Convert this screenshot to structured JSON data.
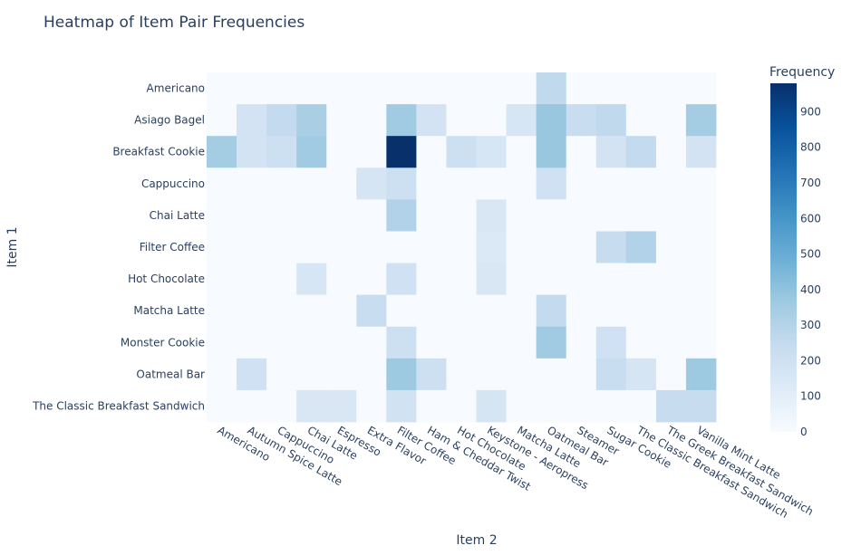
{
  "chart_data": {
    "type": "heatmap",
    "title": "Heatmap of Item Pair Frequencies",
    "xlabel": "Item 2",
    "ylabel": "Item 1",
    "colorbar_title": "Frequency",
    "colorscale": [
      "#f7fbff",
      "#deebf7",
      "#c6dbef",
      "#9ecae1",
      "#6baed6",
      "#4292c6",
      "#2171b5",
      "#08519c",
      "#08306b"
    ],
    "zlim": [
      0,
      980
    ],
    "colorbar_ticks": [
      0,
      100,
      200,
      300,
      400,
      500,
      600,
      700,
      800,
      900
    ],
    "x": [
      "Americano",
      "Autumn Spice Latte",
      "Cappuccino",
      "Chai Latte",
      "Espresso",
      "Extra Flavor",
      "Filter Coffee",
      "Ham & Cheddar Twist",
      "Hot Chocolate",
      "Keystone - Aeropress",
      "Matcha Latte",
      "Oatmeal Bar",
      "Steamer",
      "Sugar Cookie",
      "The Classic Breakfast Sandwich",
      "The Greek Breakfast Sandwich",
      "Vanilla Mint Latte"
    ],
    "y": [
      "Americano",
      "Asiago Bagel",
      "Breakfast Cookie",
      "Cappuccino",
      "Chai Latte",
      "Filter Coffee",
      "Hot Chocolate",
      "Matcha Latte",
      "Monster Cookie",
      "Oatmeal Bar",
      "The Classic Breakfast Sandwich"
    ],
    "z": [
      [
        0,
        0,
        0,
        0,
        0,
        0,
        0,
        0,
        0,
        0,
        0,
        260,
        0,
        0,
        0,
        0,
        0
      ],
      [
        0,
        180,
        250,
        330,
        0,
        0,
        360,
        180,
        0,
        0,
        160,
        380,
        230,
        260,
        0,
        0,
        350
      ],
      [
        350,
        180,
        210,
        360,
        0,
        0,
        980,
        0,
        210,
        160,
        0,
        380,
        0,
        180,
        250,
        0,
        180
      ],
      [
        0,
        0,
        0,
        0,
        0,
        170,
        210,
        0,
        0,
        0,
        0,
        200,
        0,
        0,
        0,
        0,
        0
      ],
      [
        0,
        0,
        0,
        0,
        0,
        0,
        310,
        0,
        0,
        150,
        0,
        0,
        0,
        0,
        0,
        0,
        0
      ],
      [
        0,
        0,
        0,
        0,
        0,
        0,
        0,
        0,
        0,
        140,
        0,
        0,
        0,
        240,
        310,
        0,
        0
      ],
      [
        0,
        0,
        0,
        160,
        0,
        0,
        200,
        0,
        0,
        150,
        0,
        0,
        0,
        0,
        0,
        0,
        0
      ],
      [
        0,
        0,
        0,
        0,
        0,
        230,
        0,
        0,
        0,
        0,
        0,
        250,
        0,
        0,
        0,
        0,
        0
      ],
      [
        0,
        0,
        0,
        0,
        0,
        0,
        210,
        0,
        0,
        0,
        0,
        360,
        0,
        200,
        0,
        0,
        0
      ],
      [
        0,
        200,
        0,
        0,
        0,
        0,
        370,
        210,
        0,
        0,
        0,
        0,
        0,
        230,
        170,
        0,
        370
      ],
      [
        0,
        0,
        0,
        150,
        150,
        0,
        190,
        0,
        0,
        170,
        0,
        0,
        0,
        0,
        0,
        240,
        240
      ]
    ]
  }
}
